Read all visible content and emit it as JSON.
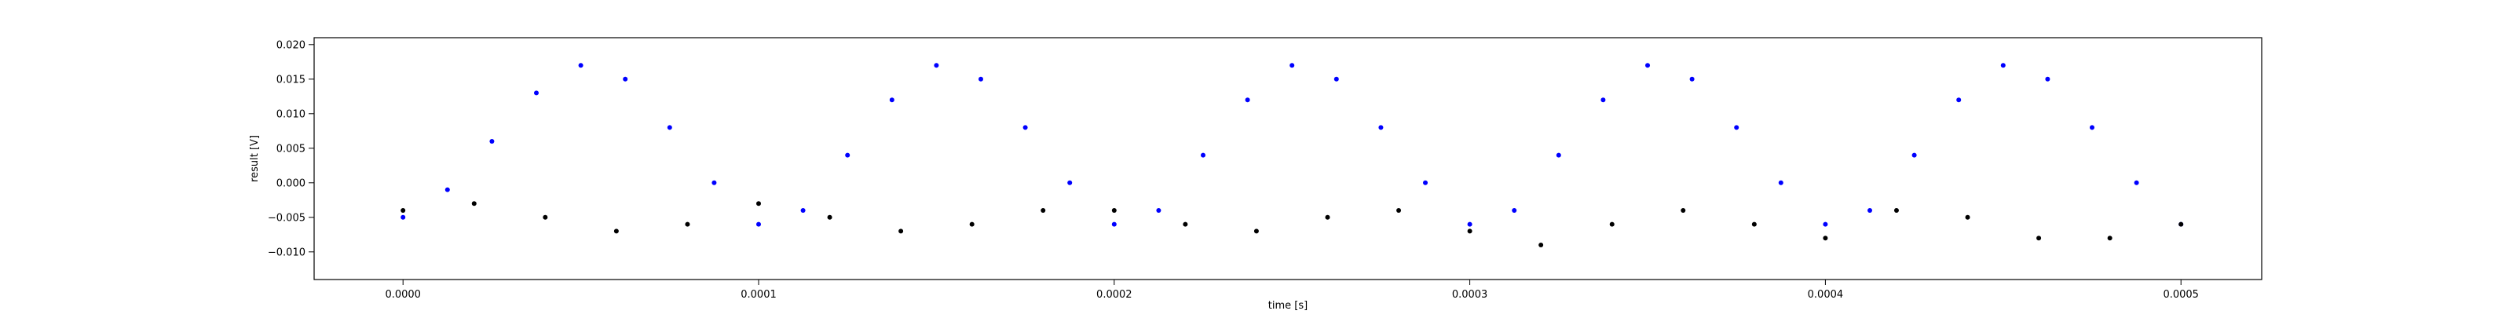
{
  "chart_data": {
    "type": "scatter",
    "title": "",
    "xlabel": "time [s]",
    "ylabel": "result [V]",
    "xlim": [
      -2.5e-05,
      0.0005227
    ],
    "ylim": [
      -0.014,
      0.021
    ],
    "x_ticks": [
      0.0,
      0.0001,
      0.0002,
      0.0003,
      0.0004,
      0.0005
    ],
    "x_tick_labels": [
      "0.0000",
      "0.0001",
      "0.0002",
      "0.0003",
      "0.0004",
      "0.0005"
    ],
    "y_ticks": [
      -0.01,
      -0.005,
      0.0,
      0.005,
      0.01,
      0.015,
      0.02
    ],
    "y_tick_labels": [
      "−0.010",
      "−0.005",
      "0.000",
      "0.005",
      "0.010",
      "0.015",
      "0.020"
    ],
    "grid": false,
    "legend": "none",
    "series_colors": [
      "#0000ff",
      "#000000"
    ],
    "series": [
      {
        "color": "#0000ff",
        "x": [
          0.0,
          1.25e-05,
          2.5e-05,
          3.75e-05,
          5e-05,
          6.25e-05,
          7.5e-05,
          8.75e-05,
          0.0001,
          0.0001125,
          0.000125,
          0.0001375,
          0.00015,
          0.0001625,
          0.000175,
          0.0001875,
          0.0002,
          0.0002125,
          0.000225,
          0.0002375,
          0.00025,
          0.0002625,
          0.000275,
          0.0002875,
          0.0003,
          0.0003125,
          0.000325,
          0.0003375,
          0.00035,
          0.0003625,
          0.000375,
          0.0003875,
          0.0004,
          0.0004125,
          0.000425,
          0.0004375,
          0.00045,
          0.0004625,
          0.000475,
          0.0004875,
          0.0005
        ],
        "y": [
          -0.005,
          -0.001,
          0.006,
          0.013,
          0.017,
          0.015,
          0.008,
          0.0,
          -0.006,
          -0.004,
          0.004,
          0.012,
          0.017,
          0.015,
          0.008,
          0.0,
          -0.006,
          -0.004,
          0.004,
          0.012,
          0.017,
          0.015,
          0.008,
          0.0,
          -0.006,
          -0.004,
          0.004,
          0.012,
          0.017,
          0.015,
          0.008,
          0.0,
          -0.006,
          -0.004,
          0.004,
          0.012,
          0.017,
          0.015,
          0.008,
          0.0,
          -0.006
        ]
      },
      {
        "color": "#000000",
        "x": [
          0.0,
          2e-05,
          4e-05,
          6e-05,
          8e-05,
          0.0001,
          0.00012,
          0.00014,
          0.00016,
          0.00018,
          0.0002,
          0.00022,
          0.00024,
          0.00026,
          0.00028,
          0.0003,
          0.00032,
          0.00034,
          0.00036,
          0.00038,
          0.0004,
          0.00042,
          0.00044,
          0.00046,
          0.00048,
          0.0005
        ],
        "y": [
          -0.004,
          -0.003,
          -0.005,
          -0.007,
          -0.006,
          -0.003,
          -0.005,
          -0.007,
          -0.006,
          -0.004,
          -0.004,
          -0.006,
          -0.007,
          -0.005,
          -0.004,
          -0.007,
          -0.009,
          -0.006,
          -0.004,
          -0.006,
          -0.008,
          -0.004,
          -0.005,
          -0.008,
          -0.008,
          -0.006
        ]
      }
    ]
  }
}
